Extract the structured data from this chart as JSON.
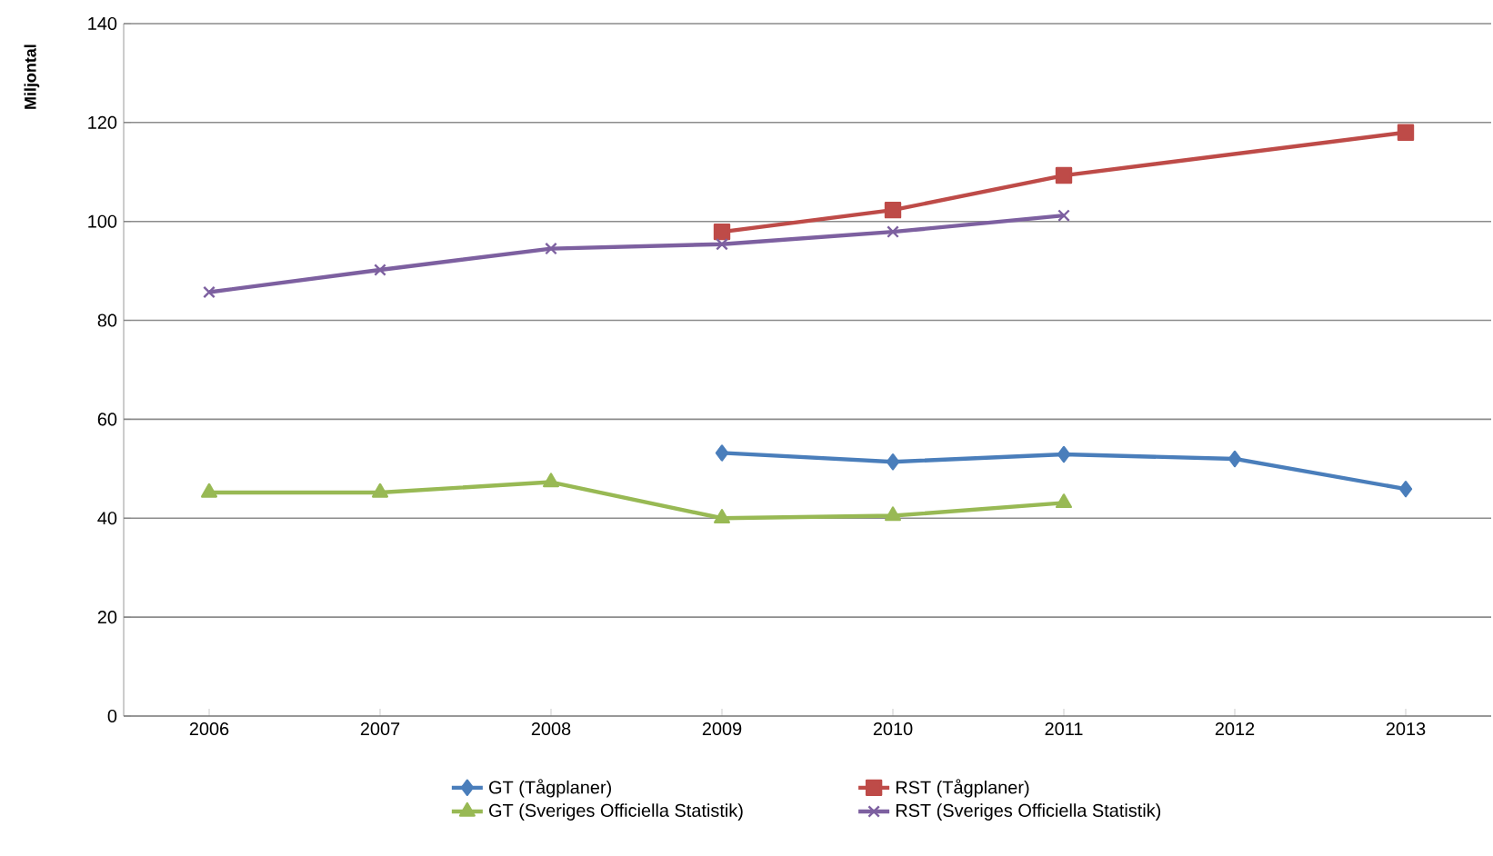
{
  "chart_data": {
    "type": "line",
    "ylabel": "Miljontal",
    "xlim": [
      2005.5,
      2013.5
    ],
    "xticks": [
      2006,
      2007,
      2008,
      2009,
      2010,
      2011,
      2012,
      2013
    ],
    "ylim": [
      0,
      140
    ],
    "yticks": [
      0,
      20,
      40,
      60,
      80,
      100,
      120,
      140
    ],
    "grid": "y",
    "legend": "bottom",
    "line_style": "solid",
    "series": [
      {
        "name": "GT (Tågplaner)",
        "color": "#4a7ebb",
        "marker": "diamond",
        "x": [
          2009,
          2010,
          2011,
          2012,
          2013
        ],
        "values": [
          53.2,
          51.4,
          52.9,
          52.0,
          45.9
        ]
      },
      {
        "name": "RST (Tågplaner)",
        "color": "#be4b48",
        "marker": "square",
        "x": [
          2009,
          2010,
          2011,
          2013
        ],
        "values": [
          97.9,
          102.3,
          109.3,
          118.0
        ]
      },
      {
        "name": "GT (Sveriges Officiella Statistik)",
        "color": "#98b954",
        "marker": "triangle",
        "x": [
          2006,
          2007,
          2008,
          2009,
          2010,
          2011
        ],
        "values": [
          45.2,
          45.2,
          47.3,
          40.0,
          40.5,
          43.1
        ]
      },
      {
        "name": "RST (Sveriges Officiella Statistik)",
        "color": "#7d60a0",
        "marker": "cross",
        "x": [
          2006,
          2007,
          2008,
          2009,
          2010,
          2011
        ],
        "values": [
          85.7,
          90.2,
          94.5,
          95.4,
          97.9,
          101.2
        ]
      }
    ]
  }
}
